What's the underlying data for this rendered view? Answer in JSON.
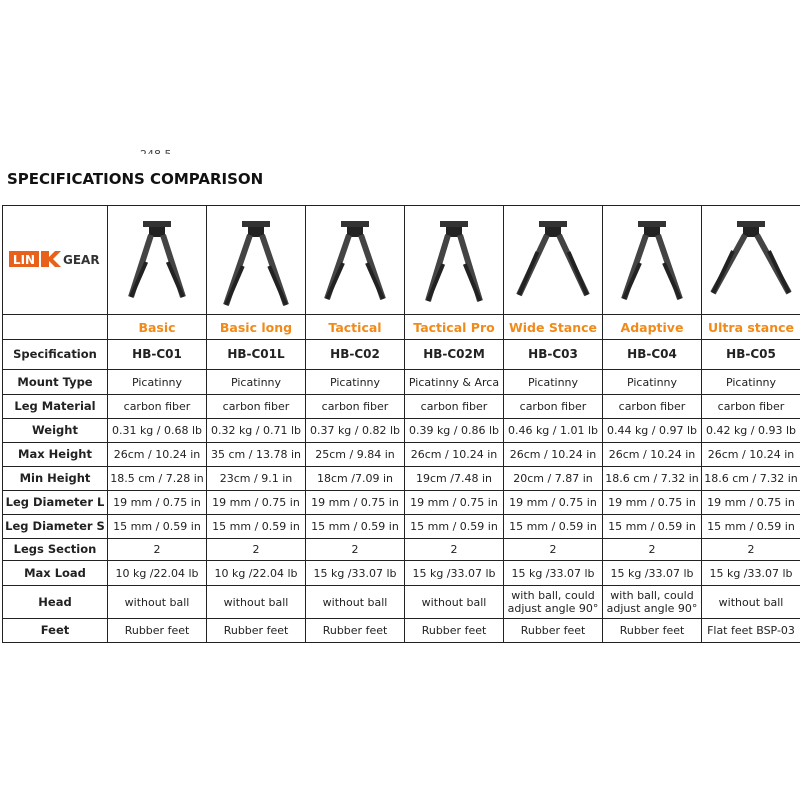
{
  "header": {
    "cut_text": "248.5",
    "title": "SPECIFICATIONS COMPARISON"
  },
  "logo": {
    "left": "LIN",
    "right": "GEAR"
  },
  "table": {
    "columns": [
      "Basic",
      "Basic long",
      "Tactical",
      "Tactical Pro",
      "Wide Stance",
      "Adaptive",
      "Ultra stance"
    ],
    "rows": [
      {
        "label": "Specification",
        "cells": [
          "HB-C01",
          "HB-C01L",
          "HB-C02",
          "HB-C02M",
          "HB-C03",
          "HB-C04",
          "HB-C05"
        ]
      },
      {
        "label": "Mount Type",
        "cells": [
          "Picatinny",
          "Picatinny",
          "Picatinny",
          "Picatinny & Arca",
          "Picatinny",
          "Picatinny",
          "Picatinny"
        ]
      },
      {
        "label": "Leg Material",
        "cells": [
          "carbon fiber",
          "carbon fiber",
          "carbon fiber",
          "carbon fiber",
          "carbon fiber",
          "carbon fiber",
          "carbon fiber"
        ]
      },
      {
        "label": "Weight",
        "cells": [
          "0.31 kg / 0.68 lb",
          "0.32 kg / 0.71 lb",
          "0.37 kg / 0.82 lb",
          "0.39 kg / 0.86 lb",
          "0.46 kg / 1.01 lb",
          "0.44 kg / 0.97 lb",
          "0.42 kg / 0.93 lb"
        ]
      },
      {
        "label": "Max Height",
        "cells": [
          "26cm / 10.24 in",
          "35 cm / 13.78 in",
          "25cm / 9.84 in",
          "26cm / 10.24 in",
          "26cm / 10.24 in",
          "26cm / 10.24 in",
          "26cm / 10.24 in"
        ]
      },
      {
        "label": "Min Height",
        "cells": [
          "18.5 cm / 7.28 in",
          "23cm / 9.1 in",
          "18cm /7.09 in",
          "19cm /7.48 in",
          "20cm / 7.87 in",
          "18.6 cm / 7.32 in",
          "18.6 cm / 7.32 in"
        ]
      },
      {
        "label": "Leg Diameter L",
        "cells": [
          "19 mm / 0.75 in",
          "19 mm / 0.75 in",
          "19 mm / 0.75 in",
          "19 mm / 0.75 in",
          "19 mm / 0.75 in",
          "19 mm / 0.75 in",
          "19 mm / 0.75 in"
        ]
      },
      {
        "label": "Leg Diameter S",
        "cells": [
          "15 mm / 0.59 in",
          "15 mm / 0.59 in",
          "15 mm / 0.59 in",
          "15 mm / 0.59 in",
          "15 mm / 0.59 in",
          "15 mm / 0.59 in",
          "15 mm / 0.59 in"
        ]
      },
      {
        "label": "Legs Section",
        "cells": [
          "2",
          "2",
          "2",
          "2",
          "2",
          "2",
          "2"
        ]
      },
      {
        "label": "Max Load",
        "cells": [
          "10 kg /22.04 lb",
          "10 kg /22.04 lb",
          "15 kg /33.07 lb",
          "15 kg /33.07 lb",
          "15 kg /33.07 lb",
          "15 kg /33.07 lb",
          "15 kg /33.07 lb"
        ]
      },
      {
        "label": "Head",
        "cells": [
          "without ball",
          "without ball",
          "without ball",
          "without ball",
          "with ball, could adjust angle 90°",
          "with ball, could adjust angle 90°",
          "without ball"
        ]
      },
      {
        "label": "Feet",
        "cells": [
          "Rubber feet",
          "Rubber feet",
          "Rubber feet",
          "Rubber feet",
          "Rubber feet",
          "Rubber feet",
          "Flat feet BSP-03"
        ]
      }
    ]
  }
}
